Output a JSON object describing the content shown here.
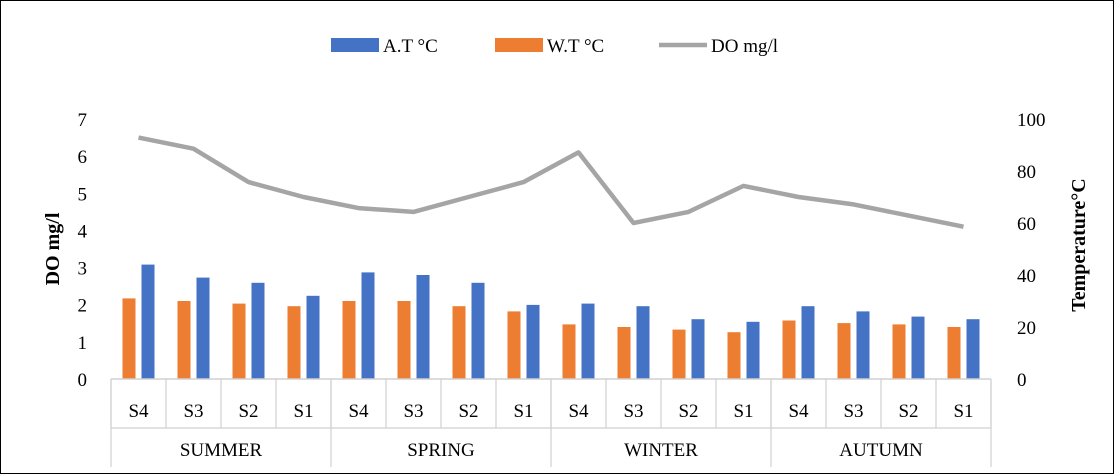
{
  "chart_data": {
    "type": "bar",
    "groups": [
      "SUMMER",
      "SPRING",
      "WINTER",
      "AUTUMN"
    ],
    "categories": [
      "S4",
      "S3",
      "S2",
      "S1",
      "S4",
      "S3",
      "S2",
      "S1",
      "S4",
      "S3",
      "S2",
      "S1",
      "S4",
      "S3",
      "S2",
      "S1"
    ],
    "series": [
      {
        "name": "A.T °C",
        "type": "bar",
        "axis": "right",
        "color": "#4472C4",
        "values": [
          44,
          39,
          37,
          32,
          41,
          40,
          37,
          28.5,
          29,
          28,
          23,
          22,
          28,
          26,
          24,
          23
        ]
      },
      {
        "name": "W.T °C",
        "type": "bar",
        "axis": "right",
        "color": "#ED7D31",
        "values": [
          31,
          30,
          29,
          28,
          30,
          30,
          28,
          26,
          21,
          20,
          19,
          18,
          22.5,
          21.5,
          21,
          20
        ]
      },
      {
        "name": "DO mg/l",
        "type": "line",
        "axis": "left",
        "color": "#A5A5A5",
        "values": [
          6.5,
          6.2,
          5.3,
          4.9,
          4.6,
          4.5,
          4.9,
          5.3,
          6.1,
          4.2,
          4.5,
          5.2,
          4.9,
          4.7,
          4.4,
          4.1
        ]
      }
    ],
    "left_axis": {
      "label": "DO mg/l",
      "min": 0,
      "max": 7,
      "ticks": [
        "0",
        "1",
        "2",
        "3",
        "4",
        "5",
        "6",
        "7"
      ]
    },
    "right_axis": {
      "label": "Temperature°C",
      "min": 0,
      "max": 100,
      "ticks": [
        "0",
        "20",
        "40",
        "60",
        "80",
        "100"
      ]
    },
    "legend_position": "top",
    "grid": false
  }
}
